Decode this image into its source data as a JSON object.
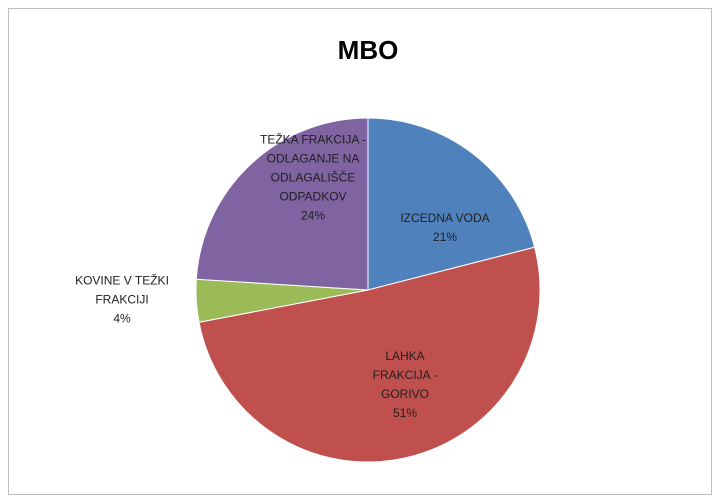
{
  "chart_data": {
    "type": "pie",
    "title": "MBO",
    "categories": [
      "IZCEDNA VODA",
      "LAHKA FRAKCIJA - GORIVO",
      "KOVINE V TEŽKI FRAKCIJI",
      "TEŽKA FRAKCIJA - ODLAGANJE NA ODLAGALIŠČE ODPADKOV"
    ],
    "values": [
      21,
      51,
      4,
      24
    ],
    "value_labels": [
      "21%",
      "51%",
      "4%",
      "24%"
    ],
    "colors": [
      "#4f81bd",
      "#c0504d",
      "#9bbb59",
      "#8064a2"
    ]
  }
}
